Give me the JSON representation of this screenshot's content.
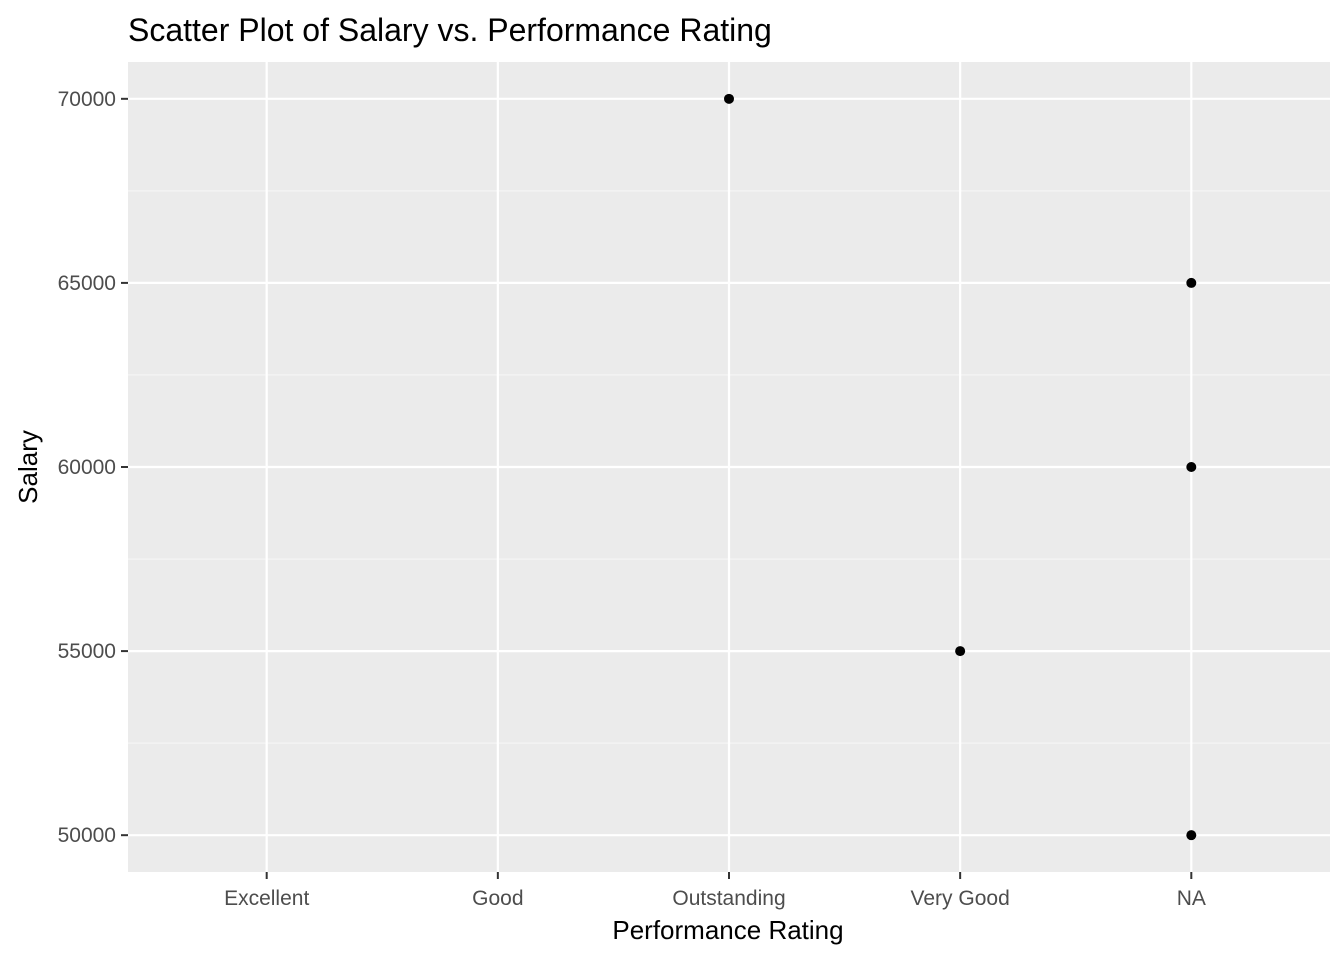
{
  "chart_data": {
    "type": "scatter",
    "title": "Scatter Plot of Salary vs. Performance Rating",
    "xlabel": "Performance Rating",
    "ylabel": "Salary",
    "categories": [
      "Excellent",
      "Good",
      "Outstanding",
      "Very Good",
      "NA"
    ],
    "y_ticks": [
      50000,
      55000,
      60000,
      65000,
      70000
    ],
    "ylim": [
      49000,
      71000
    ],
    "grid": true,
    "legend": "none",
    "points": [
      {
        "x": "Outstanding",
        "y": 70000
      },
      {
        "x": "NA",
        "y": 65000
      },
      {
        "x": "NA",
        "y": 60000
      },
      {
        "x": "Very Good",
        "y": 55000
      },
      {
        "x": "NA",
        "y": 50000
      }
    ],
    "colors": {
      "panel_background": "#ebebeb",
      "grid_major": "#ffffff",
      "grid_minor": "#f5f5f5",
      "point": "#000000",
      "tick_label": "#4d4d4d",
      "tick_mark": "#333333"
    }
  }
}
